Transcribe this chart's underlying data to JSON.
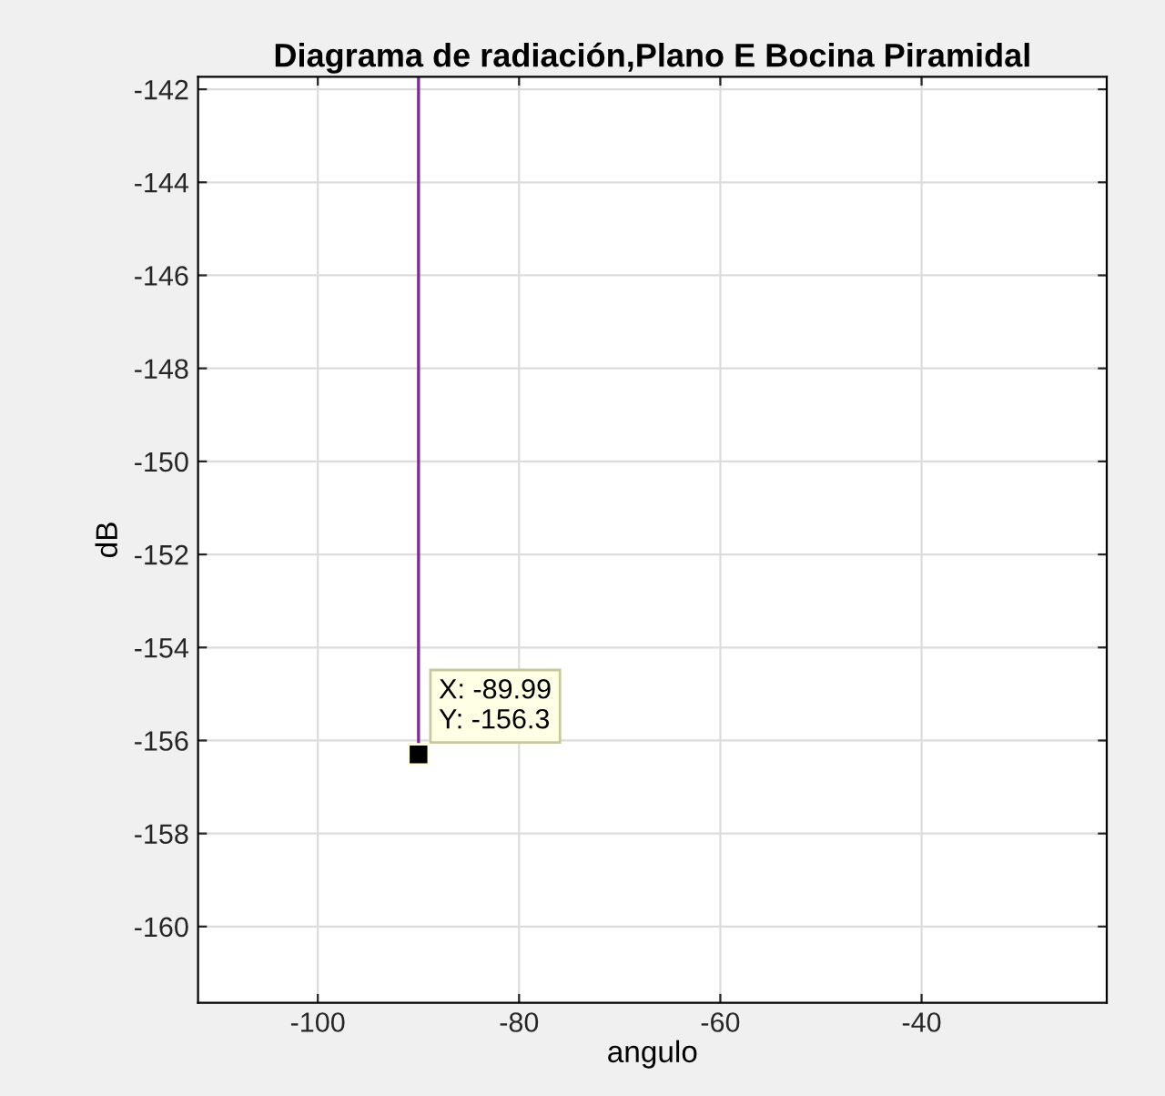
{
  "chart_data": {
    "type": "line",
    "title": "Diagrama de radiación,Plano E Bocina Piramidal",
    "xlabel": "angulo",
    "ylabel": "dB",
    "series": [
      {
        "color": "#7e2f8e",
        "x": [
          -89.99,
          -89.99
        ],
        "values": [
          -156.3,
          -141.73
        ]
      }
    ],
    "xlim": [
      -111.9,
      -21.6
    ],
    "xticks": [
      -100,
      -80,
      -60,
      -40
    ],
    "ylim": [
      -161.64,
      -141.73
    ],
    "yticks": [
      -160,
      -158,
      -156,
      -154,
      -152,
      -150,
      -148,
      -146,
      -144,
      -142
    ],
    "grid": true,
    "annotations": [
      {
        "text": "X: -89.99\nY: -156.3",
        "x": -89.99,
        "y": -156.3
      }
    ]
  }
}
